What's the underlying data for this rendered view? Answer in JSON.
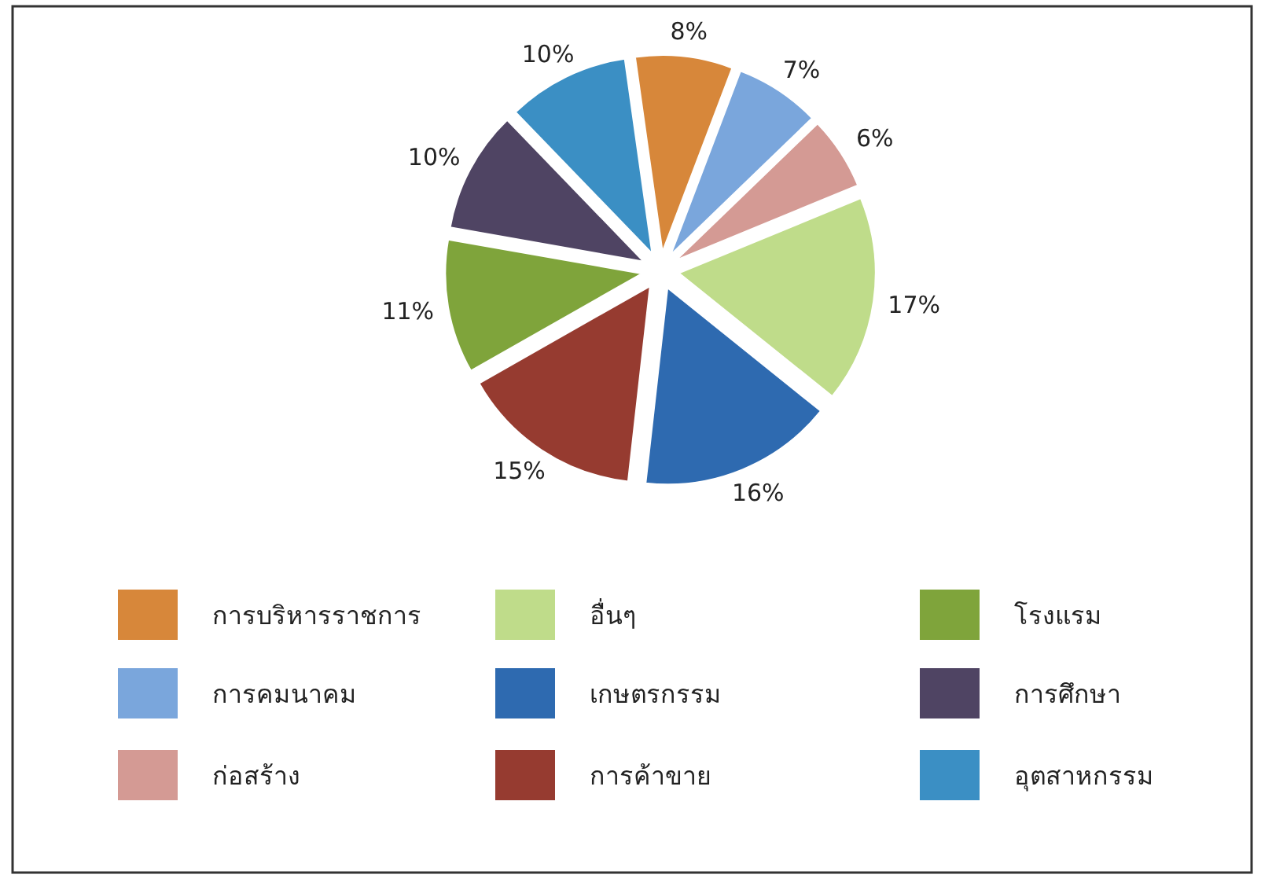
{
  "chart_data": {
    "type": "pie",
    "categories": [
      "การบริหารราชการ",
      "การคมนาคม",
      "ก่อสร้าง",
      "อื่นๆ",
      "เกษตรกรรม",
      "การค้าขาย",
      "โรงแรม",
      "การศึกษา",
      "อุตสาหกรรม"
    ],
    "values": [
      8,
      7,
      6,
      17,
      16,
      15,
      11,
      10,
      10
    ],
    "colors": [
      "#d7873a",
      "#7aa6dc",
      "#d49a94",
      "#bfdc8a",
      "#2e6ab0",
      "#963b30",
      "#7fa43b",
      "#4f4463",
      "#3b8fc4"
    ],
    "value_labels": [
      "8%",
      "7%",
      "6%",
      "17%",
      "16%",
      "15%",
      "11%",
      "10%",
      "10%"
    ],
    "legend": "bottom"
  }
}
